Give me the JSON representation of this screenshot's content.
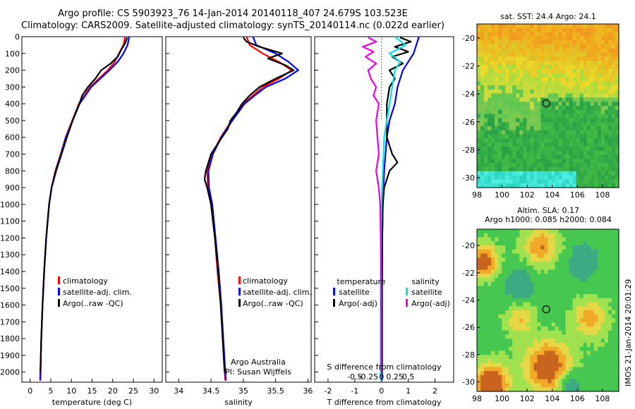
{
  "header": {
    "line1": "Argo profile: CS 5903923_76 14-Jan-2014 20140118_407 24.679S 103.523E",
    "line2": "Climatology: CARS2009. Satellite-adjusted climatology: synTS_20140114.nc (0.022d earlier)"
  },
  "stamp": "IMOS 21-Jan-2014 20:01:29",
  "colors": {
    "climatology": "#ff0000",
    "satellite": "#0000ff",
    "argo": "#000000",
    "sal_sat": "#00e5e5",
    "sal_argo": "#ee00ee"
  },
  "chart_data": [
    {
      "id": "temperature",
      "type": "line",
      "xlabel": "temperature (deg C)",
      "ylabel": "",
      "xlim": [
        -2,
        32
      ],
      "ylim": [
        2060,
        0
      ],
      "xticks": [
        0,
        5,
        10,
        15,
        20,
        25,
        30
      ],
      "yticks": [
        0,
        100,
        200,
        300,
        400,
        500,
        600,
        700,
        800,
        900,
        1000,
        1100,
        1200,
        1300,
        1400,
        1500,
        1600,
        1700,
        1800,
        1900,
        2000
      ],
      "legend": [
        "climatology",
        "satellite-adj. clim.",
        "Argo(..raw -QC)"
      ],
      "series": [
        {
          "name": "climatology",
          "color_key": "climatology",
          "depth": [
            0,
            50,
            100,
            150,
            200,
            300,
            400,
            500,
            600,
            700,
            800,
            900,
            1000,
            1200,
            1400,
            1600,
            1800,
            2050
          ],
          "values": [
            23.0,
            22.6,
            21.5,
            20.5,
            18.8,
            14.5,
            11.8,
            10.2,
            8.6,
            7.4,
            6.1,
            5.2,
            4.6,
            3.9,
            3.4,
            3.0,
            2.7,
            2.4
          ]
        },
        {
          "name": "satellite-adj. clim.",
          "color_key": "satellite",
          "depth": [
            0,
            50,
            100,
            150,
            200,
            300,
            400,
            500,
            600,
            700,
            800,
            900,
            1000,
            1200,
            1400,
            1600,
            1800,
            2050
          ],
          "values": [
            24.0,
            23.6,
            22.6,
            21.2,
            19.2,
            14.8,
            12.0,
            10.3,
            8.7,
            7.5,
            6.2,
            5.2,
            4.6,
            3.9,
            3.4,
            3.0,
            2.7,
            2.5
          ]
        },
        {
          "name": "Argo(..raw -QC)",
          "color_key": "argo",
          "depth": [
            5,
            40,
            80,
            120,
            160,
            200,
            250,
            300,
            350,
            400,
            450,
            500,
            550,
            600,
            700,
            800,
            900,
            1000,
            1200,
            1400,
            1600,
            1800,
            2000
          ],
          "values": [
            23.5,
            23.0,
            22.0,
            21.2,
            19.5,
            17.2,
            15.8,
            14.0,
            12.6,
            11.9,
            11.1,
            10.3,
            9.6,
            8.9,
            7.6,
            6.3,
            5.2,
            4.6,
            3.9,
            3.4,
            3.0,
            2.7,
            2.5
          ]
        }
      ]
    },
    {
      "id": "salinity",
      "type": "line",
      "xlabel": "salinity",
      "ylabel": "",
      "xlim": [
        33.8,
        36.05
      ],
      "ylim": [
        2060,
        0
      ],
      "xticks": [
        34,
        34.5,
        35,
        35.5,
        36
      ],
      "legend": [
        "climatology",
        "satellite-adj. clim.",
        "Argo(..raw -QC)"
      ],
      "annotation": [
        "Argo Australia",
        "PI: Susan Wijffels"
      ],
      "series": [
        {
          "name": "climatology",
          "color_key": "climatology",
          "depth": [
            0,
            50,
            100,
            150,
            200,
            250,
            300,
            350,
            400,
            500,
            600,
            700,
            800,
            900,
            1000,
            1200,
            1400,
            1600,
            1800,
            2050
          ],
          "values": [
            35.05,
            35.1,
            35.3,
            35.55,
            35.75,
            35.55,
            35.3,
            35.15,
            35.0,
            34.82,
            34.65,
            34.52,
            34.44,
            34.45,
            34.5,
            34.56,
            34.6,
            34.65,
            34.68,
            34.72
          ]
        },
        {
          "name": "satellite-adj. clim.",
          "color_key": "satellite",
          "depth": [
            0,
            50,
            100,
            150,
            200,
            250,
            300,
            350,
            400,
            500,
            600,
            700,
            800,
            900,
            1000,
            1200,
            1400,
            1600,
            1800,
            2050
          ],
          "values": [
            35.15,
            35.2,
            35.5,
            35.7,
            35.85,
            35.65,
            35.35,
            35.18,
            35.02,
            34.83,
            34.66,
            34.53,
            34.46,
            34.47,
            34.52,
            34.57,
            34.62,
            34.66,
            34.69,
            34.73
          ]
        },
        {
          "name": "Argo(..raw -QC)",
          "color_key": "argo",
          "depth": [
            5,
            30,
            60,
            100,
            130,
            170,
            200,
            250,
            300,
            350,
            400,
            450,
            500,
            550,
            600,
            700,
            800,
            850,
            900,
            1000,
            1200,
            1400,
            1600,
            1800,
            2000
          ],
          "values": [
            35.0,
            35.05,
            35.25,
            35.6,
            35.38,
            35.65,
            35.78,
            35.5,
            35.25,
            35.1,
            34.98,
            34.9,
            34.8,
            34.76,
            34.67,
            34.5,
            34.42,
            34.4,
            34.44,
            34.5,
            34.56,
            34.61,
            34.65,
            34.68,
            34.71
          ]
        }
      ]
    },
    {
      "id": "difference",
      "type": "line",
      "xlabel": "T difference from climatology",
      "xlabel2": "S difference from climatology",
      "xlim": [
        -2.5,
        2.7
      ],
      "ylim": [
        2060,
        0
      ],
      "xticks": [
        -2,
        -1,
        0,
        1,
        2
      ],
      "xticks_top": [
        "-0.5",
        "-0.25",
        "0",
        "0.25",
        "0.5"
      ],
      "legend_titles": [
        "temperature",
        "salinity"
      ],
      "legend": [
        "satellite",
        "Argo(-adj)",
        "satellite",
        "Argo(-adj)"
      ],
      "series": [
        {
          "name": "temperature satellite",
          "color_key": "satellite",
          "depth": [
            0,
            50,
            100,
            150,
            200,
            300,
            400,
            500,
            600,
            700,
            800,
            1000,
            1200,
            1500,
            1800,
            2050
          ],
          "values": [
            1.4,
            1.3,
            1.2,
            1.0,
            0.8,
            0.6,
            0.5,
            0.3,
            0.2,
            0.15,
            0.1,
            0.05,
            0.03,
            0.02,
            0.02,
            0.02
          ]
        },
        {
          "name": "temperature Argo(-adj)",
          "color_key": "argo",
          "depth": [
            5,
            30,
            60,
            90,
            120,
            160,
            200,
            250,
            300,
            400,
            500,
            600,
            700,
            750,
            800,
            900,
            1000,
            1200,
            1500,
            1800,
            2000
          ],
          "values": [
            0.7,
            1.1,
            0.5,
            1.0,
            0.4,
            0.8,
            0.3,
            0.5,
            0.3,
            0.2,
            0.2,
            0.2,
            0.4,
            0.6,
            0.3,
            0.1,
            0.05,
            0.03,
            0.02,
            0.02,
            0.02
          ]
        },
        {
          "name": "salinity satellite",
          "color_key": "sal_sat",
          "depth": [
            0,
            50,
            100,
            150,
            200,
            300,
            400,
            500,
            600,
            800,
            1000,
            1200,
            1500,
            1800,
            2050
          ],
          "values": [
            0.5,
            0.9,
            0.3,
            0.7,
            0.5,
            0.4,
            0.3,
            0.2,
            0.1,
            0.05,
            0.0,
            -0.02,
            -0.03,
            -0.03,
            -0.03
          ]
        },
        {
          "name": "salinity Argo(-adj)",
          "color_key": "sal_argo",
          "depth": [
            5,
            30,
            60,
            90,
            120,
            160,
            200,
            250,
            300,
            350,
            400,
            500,
            600,
            700,
            800,
            900,
            1000,
            1200,
            1500,
            1800,
            2000
          ],
          "values": [
            -0.5,
            -0.2,
            -0.7,
            -0.3,
            -0.6,
            -0.2,
            -0.5,
            -0.4,
            -0.2,
            -0.3,
            -0.1,
            -0.2,
            -0.15,
            -0.1,
            -0.2,
            -0.1,
            -0.05,
            -0.03,
            -0.02,
            -0.02,
            -0.02
          ]
        }
      ]
    },
    {
      "id": "sst-map",
      "type": "heatmap",
      "title": "sat. SST: 24.4 Argo: 24.1",
      "xlim": [
        98,
        109.3
      ],
      "ylim": [
        -30.7,
        -19.0
      ],
      "xticks": [
        98,
        100,
        102,
        104,
        106,
        108
      ],
      "yticks": [
        -20,
        -22,
        -24,
        -26,
        -28,
        -30
      ],
      "point": {
        "lon": 103.523,
        "lat": -24.679
      }
    },
    {
      "id": "sla-map",
      "type": "heatmap",
      "title": "Altim. SLA: 0.17",
      "subtitle": "Argo h1000: 0.085 h2000: 0.084",
      "xlim": [
        98,
        109.3
      ],
      "ylim": [
        -30.7,
        -18.8
      ],
      "xticks": [
        98,
        100,
        102,
        104,
        106,
        108
      ],
      "yticks": [
        -20,
        -22,
        -24,
        -26,
        -28,
        -30
      ],
      "point": {
        "lon": 103.523,
        "lat": -24.679
      }
    }
  ]
}
